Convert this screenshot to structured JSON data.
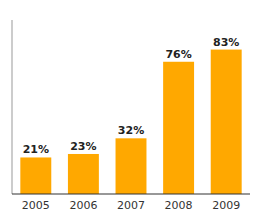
{
  "chart_data": {
    "type": "bar",
    "categories": [
      "2005",
      "2006",
      "2007",
      "2008",
      "2009"
    ],
    "values": [
      21,
      23,
      32,
      76,
      83
    ],
    "value_labels": [
      "21%",
      "23%",
      "32%",
      "76%",
      "83%"
    ],
    "data_labels": true,
    "color": "#FFA800",
    "ylim": [
      0,
      100
    ],
    "grid": false,
    "tick_labels": "x"
  }
}
